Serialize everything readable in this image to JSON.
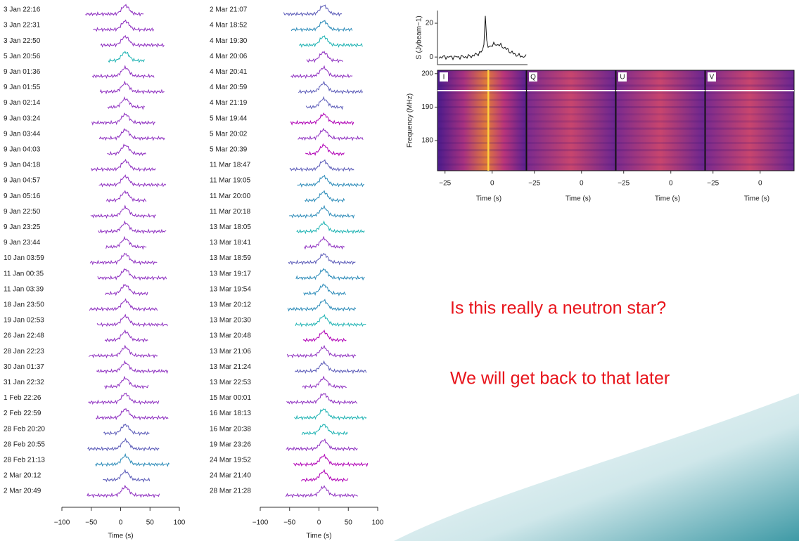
{
  "left_panel": {
    "labels": [
      "3 Jan 22:16",
      "3 Jan 22:31",
      "3 Jan 22:50",
      "5 Jan 20:56",
      "9 Jan 01:36",
      "9 Jan 01:55",
      "9 Jan 02:14",
      "9 Jan 03:24",
      "9 Jan 03:44",
      "9 Jan 04:03",
      "9 Jan 04:18",
      "9 Jan 04:57",
      "9 Jan 05:16",
      "9 Jan 22:50",
      "9 Jan 23:25",
      "9 Jan 23:44",
      "10 Jan 03:59",
      "11 Jan 00:35",
      "11 Jan 03:39",
      "18 Jan 23:50",
      "19 Jan 02:53",
      "26 Jan 22:48",
      "28 Jan 22:23",
      "30 Jan 01:37",
      "31 Jan 22:32",
      "1 Feb 22:26",
      "2 Feb 22:59",
      "28 Feb 20:20",
      "28 Feb 20:55",
      "28 Feb 21:13",
      "2 Mar 20:12",
      "2 Mar 20:49"
    ],
    "colors": [
      "#8e2fc0",
      "#8e2fc0",
      "#8e2fc0",
      "#1fb3b3",
      "#8e2fc0",
      "#8e2fc0",
      "#8e2fc0",
      "#8e2fc0",
      "#8e2fc0",
      "#8e2fc0",
      "#8e2fc0",
      "#8e2fc0",
      "#8e2fc0",
      "#8e2fc0",
      "#8e2fc0",
      "#8e2fc0",
      "#8e2fc0",
      "#8e2fc0",
      "#8e2fc0",
      "#8e2fc0",
      "#8e2fc0",
      "#8e2fc0",
      "#8e2fc0",
      "#8e2fc0",
      "#8e2fc0",
      "#8e2fc0",
      "#8e2fc0",
      "#5b5bb8",
      "#5b5bb8",
      "#2a8ab8",
      "#5b5bb8",
      "#8e2fc0"
    ],
    "xlim": [
      -100,
      100
    ],
    "xticks": [
      {
        "value": -100,
        "label": "−100"
      },
      {
        "value": -50,
        "label": "−50"
      },
      0,
      50,
      100
    ],
    "xlabel": "Time (s)"
  },
  "right_panel": {
    "labels": [
      "2 Mar 21:07",
      "4 Mar 18:52",
      "4 Mar 19:30",
      "4 Mar 20:06",
      "4 Mar 20:41",
      "4 Mar 20:59",
      "4 Mar 21:19",
      "5 Mar 19:44",
      "5 Mar 20:02",
      "5 Mar 20:39",
      "11 Mar 18:47",
      "11 Mar 19:05",
      "11 Mar 20:00",
      "11 Mar 20:18",
      "13 Mar 18:05",
      "13 Mar 18:41",
      "13 Mar 18:59",
      "13 Mar 19:17",
      "13 Mar 19:54",
      "13 Mar 20:12",
      "13 Mar 20:30",
      "13 Mar 20:48",
      "13 Mar 21:06",
      "13 Mar 21:24",
      "13 Mar 22:53",
      "15 Mar 00:01",
      "16 Mar 18:13",
      "16 Mar 20:38",
      "19 Mar 23:26",
      "24 Mar 19:52",
      "24 Mar 21:40",
      "28 Mar 21:28"
    ],
    "colors": [
      "#5b5bb8",
      "#2a8ab8",
      "#1fb3b3",
      "#8e2fc0",
      "#8e2fc0",
      "#5b5bb8",
      "#5b5bb8",
      "#b000b5",
      "#8e2fc0",
      "#b000b5",
      "#5b5bb8",
      "#2a8ab8",
      "#2a8ab8",
      "#2a8ab8",
      "#1fb3b3",
      "#8e2fc0",
      "#5b5bb8",
      "#2a8ab8",
      "#2a8ab8",
      "#2a8ab8",
      "#1fb3b3",
      "#b000b5",
      "#8e2fc0",
      "#5b5bb8",
      "#8e2fc0",
      "#8e2fc0",
      "#1fb3b3",
      "#1fb3b3",
      "#8e2fc0",
      "#b000b5",
      "#b000b5",
      "#8e2fc0"
    ],
    "xlim": [
      -100,
      100
    ],
    "xticks": [
      {
        "value": -100,
        "label": "−100"
      },
      {
        "value": -50,
        "label": "−50"
      },
      0,
      50,
      100
    ],
    "xlabel": "Time (s)"
  },
  "flux_plot": {
    "ylabel": "S (Jybeam−1)",
    "ylim": [
      -4.5,
      27.5
    ],
    "yticks": [
      0,
      20
    ]
  },
  "dynamic_spectrum": {
    "panels": [
      "I",
      "Q",
      "U",
      "V"
    ],
    "ylabel": "Frequency (MHz)",
    "ylim": [
      171,
      201
    ],
    "yticks": [
      180,
      190,
      200
    ],
    "xlim": [
      -29,
      18
    ],
    "xticks": [
      {
        "value": -25,
        "label": "−25"
      },
      0
    ],
    "xlabel": "Time (s)"
  },
  "notes": [
    "Is this really a neutron star?",
    "We will get back to that later"
  ]
}
